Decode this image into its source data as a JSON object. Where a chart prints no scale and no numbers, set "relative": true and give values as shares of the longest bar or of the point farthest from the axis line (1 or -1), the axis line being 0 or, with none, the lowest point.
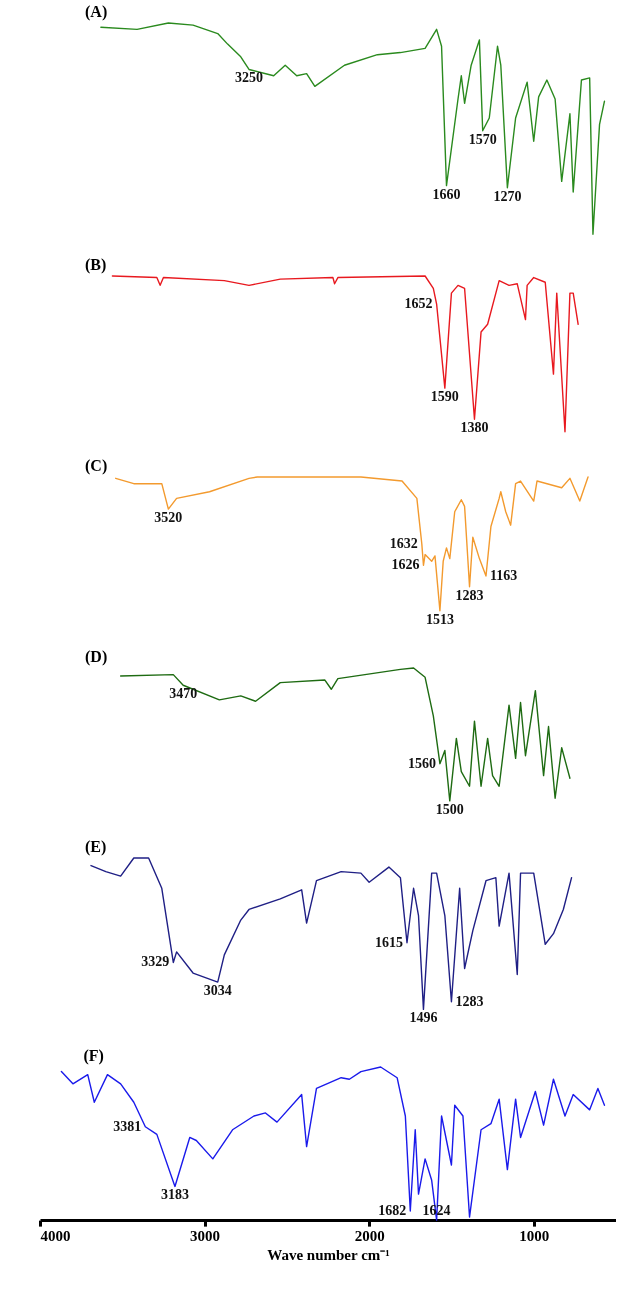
{
  "chart_data": [
    {
      "type": "line",
      "title": "(A)",
      "relative": true,
      "tick_labels": false,
      "xlim": [
        4000,
        500
      ],
      "x": [
        3630,
        3410,
        3220,
        3070,
        2920,
        2860,
        2780,
        2730,
        2580,
        2510,
        2440,
        2380,
        2330,
        2150,
        1950,
        1810,
        1660,
        1590,
        1560,
        1530,
        1460,
        1440,
        1420,
        1380,
        1330,
        1310,
        1270,
        1220,
        1200,
        1160,
        1110,
        1040,
        1000,
        970,
        920,
        870,
        830,
        780,
        760,
        710,
        660,
        640,
        600,
        570
      ],
      "series": [
        {
          "color": "#2a8a1e",
          "values": [
            0.98,
            0.97,
            1.0,
            0.99,
            0.95,
            0.9,
            0.84,
            0.78,
            0.75,
            0.8,
            0.75,
            0.76,
            0.7,
            0.8,
            0.85,
            0.86,
            0.88,
            0.97,
            0.89,
            0.23,
            0.64,
            0.75,
            0.62,
            0.8,
            0.92,
            0.49,
            0.55,
            0.89,
            0.8,
            0.22,
            0.55,
            0.72,
            0.44,
            0.65,
            0.73,
            0.64,
            0.25,
            0.57,
            0.2,
            0.73,
            0.74,
            0.0,
            0.52,
            0.63
          ]
        }
      ],
      "annotations": [
        {
          "text": "3250",
          "x": 2730,
          "y": 0.78
        },
        {
          "text": "1570",
          "x": 1310,
          "y": 0.49
        },
        {
          "text": "1660",
          "x": 1530,
          "y": 0.23
        },
        {
          "text": "1270",
          "x": 1160,
          "y": 0.22
        }
      ]
    },
    {
      "type": "line",
      "title": "(B)",
      "relative": true,
      "tick_labels": false,
      "xlim": [
        4000,
        500
      ],
      "x": [
        3560,
        3290,
        3270,
        3250,
        2880,
        2730,
        2540,
        2220,
        2210,
        2190,
        1660,
        1610,
        1590,
        1540,
        1500,
        1460,
        1420,
        1360,
        1320,
        1280,
        1210,
        1150,
        1100,
        1050,
        1040,
        1000,
        930,
        880,
        860,
        810,
        780,
        760,
        730
      ],
      "series": [
        {
          "color": "#e8191f",
          "values": [
            1.0,
            0.99,
            0.94,
            0.99,
            0.97,
            0.94,
            0.98,
            0.99,
            0.95,
            0.99,
            1.0,
            0.92,
            0.82,
            0.28,
            0.89,
            0.94,
            0.92,
            0.08,
            0.64,
            0.69,
            0.97,
            0.94,
            0.95,
            0.72,
            0.94,
            0.99,
            0.96,
            0.37,
            0.89,
            0.0,
            0.89,
            0.89,
            0.69
          ]
        }
      ],
      "annotations": [
        {
          "text": "1652",
          "x": 1590,
          "y": 0.82
        },
        {
          "text": "1590",
          "x": 1540,
          "y": 0.28
        },
        {
          "text": "1380",
          "x": 1360,
          "y": 0.08
        }
      ]
    },
    {
      "type": "line",
      "title": "(C)",
      "relative": true,
      "tick_labels": false,
      "xlim": [
        4000,
        500
      ],
      "x": [
        3540,
        3430,
        3260,
        3220,
        3170,
        2970,
        2730,
        2680,
        2050,
        1800,
        1710,
        1680,
        1670,
        1660,
        1620,
        1600,
        1570,
        1550,
        1530,
        1510,
        1480,
        1440,
        1420,
        1390,
        1370,
        1330,
        1290,
        1260,
        1210,
        1200,
        1170,
        1140,
        1110,
        1080,
        1000,
        980,
        830,
        780,
        720,
        670
      ],
      "series": [
        {
          "color": "#f39a2e",
          "values": [
            0.99,
            0.95,
            0.95,
            0.76,
            0.84,
            0.89,
            0.99,
            1.0,
            1.0,
            0.97,
            0.84,
            0.5,
            0.34,
            0.42,
            0.37,
            0.41,
            0.0,
            0.37,
            0.47,
            0.39,
            0.74,
            0.83,
            0.78,
            0.18,
            0.55,
            0.39,
            0.26,
            0.63,
            0.84,
            0.89,
            0.74,
            0.64,
            0.95,
            0.97,
            0.82,
            0.97,
            0.92,
            0.99,
            0.82,
            1.0
          ]
        }
      ],
      "annotations": [
        {
          "text": "3520",
          "x": 3220,
          "y": 0.76
        },
        {
          "text": "1632",
          "x": 1680,
          "y": 0.5
        },
        {
          "text": "1626",
          "x": 1670,
          "y": 0.34
        },
        {
          "text": "1283",
          "x": 1390,
          "y": 0.18
        },
        {
          "text": "1513",
          "x": 1570,
          "y": 0.0
        },
        {
          "text": "1163",
          "x": 1290,
          "y": 0.26
        }
      ]
    },
    {
      "type": "line",
      "title": "(D)",
      "relative": true,
      "tick_labels": false,
      "xlim": [
        4000,
        500
      ],
      "x": [
        3510,
        3190,
        3130,
        2910,
        2780,
        2690,
        2540,
        2270,
        2230,
        2190,
        1810,
        1730,
        1660,
        1610,
        1570,
        1540,
        1510,
        1470,
        1440,
        1390,
        1360,
        1320,
        1280,
        1250,
        1210,
        1150,
        1110,
        1080,
        1050,
        990,
        940,
        910,
        870,
        830,
        780
      ],
      "series": [
        {
          "color": "#1e6b12",
          "values": [
            0.94,
            0.95,
            0.87,
            0.76,
            0.79,
            0.75,
            0.89,
            0.91,
            0.84,
            0.92,
            0.99,
            1.0,
            0.93,
            0.64,
            0.28,
            0.38,
            0.0,
            0.47,
            0.22,
            0.11,
            0.6,
            0.11,
            0.47,
            0.19,
            0.11,
            0.72,
            0.32,
            0.74,
            0.34,
            0.83,
            0.19,
            0.56,
            0.02,
            0.4,
            0.17
          ]
        }
      ],
      "annotations": [
        {
          "text": "3470",
          "x": 3130,
          "y": 0.87
        },
        {
          "text": "1560",
          "x": 1570,
          "y": 0.28
        },
        {
          "text": "1500",
          "x": 1510,
          "y": 0.0
        }
      ]
    },
    {
      "type": "line",
      "title": "(E)",
      "relative": true,
      "tick_labels": false,
      "xlim": [
        4000,
        500
      ],
      "x": [
        3690,
        3600,
        3510,
        3430,
        3340,
        3260,
        3190,
        3170,
        3070,
        2920,
        2880,
        2780,
        2730,
        2540,
        2410,
        2380,
        2320,
        2170,
        2050,
        2000,
        1880,
        1810,
        1770,
        1730,
        1700,
        1670,
        1620,
        1590,
        1540,
        1500,
        1450,
        1420,
        1370,
        1290,
        1230,
        1210,
        1150,
        1100,
        1080,
        1000,
        930,
        880,
        820,
        770
      ],
      "series": [
        {
          "color": "#1f1f85",
          "values": [
            0.95,
            0.91,
            0.88,
            1.0,
            1.0,
            0.8,
            0.31,
            0.38,
            0.24,
            0.18,
            0.36,
            0.59,
            0.66,
            0.73,
            0.79,
            0.57,
            0.85,
            0.91,
            0.9,
            0.84,
            0.94,
            0.87,
            0.44,
            0.8,
            0.62,
            0.0,
            0.9,
            0.9,
            0.62,
            0.05,
            0.8,
            0.27,
            0.52,
            0.85,
            0.87,
            0.55,
            0.9,
            0.23,
            0.9,
            0.9,
            0.43,
            0.5,
            0.66,
            0.87
          ]
        }
      ],
      "annotations": [
        {
          "text": "3329",
          "x": 3190,
          "y": 0.31
        },
        {
          "text": "3034",
          "x": 2920,
          "y": 0.18
        },
        {
          "text": "1615",
          "x": 1770,
          "y": 0.44
        },
        {
          "text": "1496",
          "x": 1670,
          "y": 0.0
        },
        {
          "text": "1283",
          "x": 1500,
          "y": 0.05
        }
      ]
    },
    {
      "type": "line",
      "title": "(F)",
      "relative": true,
      "tick_labels": "x",
      "xlim": [
        4000,
        500
      ],
      "xticks": [
        4000,
        3000,
        2000,
        1000
      ],
      "xlabel": "Wave number cm⁻¹",
      "x": [
        3870,
        3800,
        3710,
        3670,
        3590,
        3510,
        3430,
        3360,
        3290,
        3180,
        3090,
        3050,
        2950,
        2830,
        2700,
        2630,
        2560,
        2410,
        2380,
        2320,
        2170,
        2120,
        2050,
        1930,
        1830,
        1780,
        1750,
        1720,
        1700,
        1660,
        1620,
        1590,
        1560,
        1500,
        1480,
        1430,
        1390,
        1320,
        1260,
        1210,
        1160,
        1110,
        1080,
        990,
        940,
        880,
        810,
        760,
        660,
        610,
        570
      ],
      "series": [
        {
          "color": "#1a1aeb",
          "values": [
            0.97,
            0.89,
            0.95,
            0.77,
            0.95,
            0.89,
            0.77,
            0.61,
            0.56,
            0.22,
            0.54,
            0.52,
            0.4,
            0.59,
            0.68,
            0.7,
            0.64,
            0.82,
            0.48,
            0.86,
            0.93,
            0.92,
            0.97,
            1.0,
            0.93,
            0.68,
            0.06,
            0.59,
            0.17,
            0.4,
            0.26,
            0.0,
            0.68,
            0.36,
            0.75,
            0.68,
            0.02,
            0.59,
            0.63,
            0.79,
            0.33,
            0.79,
            0.54,
            0.84,
            0.62,
            0.92,
            0.68,
            0.82,
            0.72,
            0.86,
            0.75
          ]
        }
      ],
      "annotations": [
        {
          "text": "3381",
          "x": 3360,
          "y": 0.61
        },
        {
          "text": "3183",
          "x": 3180,
          "y": 0.22
        },
        {
          "text": "1682",
          "x": 1750,
          "y": 0.06
        },
        {
          "text": "1624",
          "x": 1590,
          "y": 0.0
        }
      ]
    }
  ]
}
